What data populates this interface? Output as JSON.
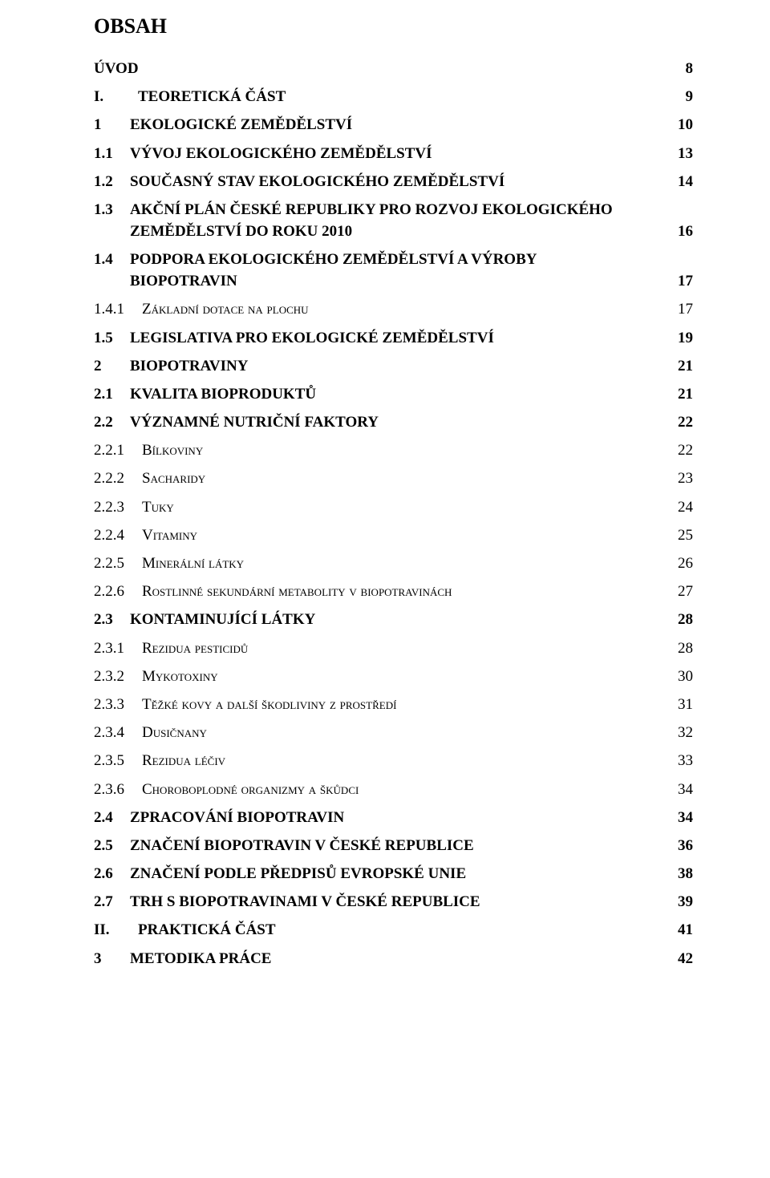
{
  "title": "OBSAH",
  "entries": [
    {
      "level": 0,
      "num": "",
      "label": "ÚVOD",
      "page": "8"
    },
    {
      "level": 0,
      "num": "I.",
      "label": "TEORETICKÁ ČÁST",
      "page": "9",
      "gap": true
    },
    {
      "level": 1,
      "num": "1",
      "label": "EKOLOGICKÉ ZEMĚDĚLSTVÍ",
      "page": "10"
    },
    {
      "level": 1,
      "num": "1.1",
      "label": "VÝVOJ EKOLOGICKÉHO ZEMĚDĚLSTVÍ",
      "page": "13"
    },
    {
      "level": 1,
      "num": "1.2",
      "label": "SOUČASNÝ STAV EKOLOGICKÉHO ZEMĚDĚLSTVÍ",
      "page": "14"
    },
    {
      "level": 1,
      "num": "1.3",
      "label_line1": "AKČNÍ PLÁN ČESKÉ REPUBLIKY PRO ROZVOJ EKOLOGICKÉHO",
      "label_line2": "ZEMĚDĚLSTVÍ DO ROKU 2010",
      "page": "16",
      "twoline": true
    },
    {
      "level": 1,
      "num": "1.4",
      "label_line1": "PODPORA EKOLOGICKÉHO ZEMĚDĚLSTVÍ A VÝROBY",
      "label_line2": "BIOPOTRAVIN",
      "page": "17",
      "twoline": true
    },
    {
      "level": 2,
      "num": "1.4.1",
      "label": "Základní dotace na plochu",
      "page": "17"
    },
    {
      "level": 1,
      "num": "1.5",
      "label": "LEGISLATIVA PRO EKOLOGICKÉ ZEMĚDĚLSTVÍ",
      "page": "19"
    },
    {
      "level": 1,
      "num": "2",
      "label": "BIOPOTRAVINY",
      "page": "21"
    },
    {
      "level": 1,
      "num": "2.1",
      "label": "KVALITA BIOPRODUKTŮ",
      "page": "21"
    },
    {
      "level": 1,
      "num": "2.2",
      "label": "VÝZNAMNÉ NUTRIČNÍ FAKTORY",
      "page": "22"
    },
    {
      "level": 2,
      "num": "2.2.1",
      "label": "Bílkoviny",
      "page": "22"
    },
    {
      "level": 2,
      "num": "2.2.2",
      "label": "Sacharidy",
      "page": "23"
    },
    {
      "level": 2,
      "num": "2.2.3",
      "label": "Tuky",
      "page": "24"
    },
    {
      "level": 2,
      "num": "2.2.4",
      "label": "Vitaminy",
      "page": "25"
    },
    {
      "level": 2,
      "num": "2.2.5",
      "label": "Minerální látky",
      "page": "26"
    },
    {
      "level": 2,
      "num": "2.2.6",
      "label": "Rostlinné sekundární metabolity v biopotravinách",
      "page": "27"
    },
    {
      "level": 1,
      "num": "2.3",
      "label": "KONTAMINUJÍCÍ LÁTKY",
      "page": "28"
    },
    {
      "level": 2,
      "num": "2.3.1",
      "label": "Rezidua pesticidů",
      "page": "28"
    },
    {
      "level": 2,
      "num": "2.3.2",
      "label": "Mykotoxiny",
      "page": "30"
    },
    {
      "level": 2,
      "num": "2.3.3",
      "label": "Těžké kovy a další škodliviny z prostředí",
      "page": "31"
    },
    {
      "level": 2,
      "num": "2.3.4",
      "label": "Dusičnany",
      "page": "32"
    },
    {
      "level": 2,
      "num": "2.3.5",
      "label": "Rezidua léčiv",
      "page": "33"
    },
    {
      "level": 2,
      "num": "2.3.6",
      "label": "Choroboplodné organizmy a škůdci",
      "page": "34"
    },
    {
      "level": 1,
      "num": "2.4",
      "label": "ZPRACOVÁNÍ BIOPOTRAVIN",
      "page": "34"
    },
    {
      "level": 1,
      "num": "2.5",
      "label": "ZNAČENÍ BIOPOTRAVIN V ČESKÉ REPUBLICE",
      "page": "36"
    },
    {
      "level": 1,
      "num": "2.6",
      "label": "ZNAČENÍ PODLE PŘEDPISŮ EVROPSKÉ UNIE",
      "page": "38"
    },
    {
      "level": 1,
      "num": "2.7",
      "label": "TRH S BIOPOTRAVINAMI V ČESKÉ REPUBLICE",
      "page": "39"
    },
    {
      "level": 0,
      "num": "II.",
      "label": "PRAKTICKÁ ČÁST",
      "page": "41",
      "gap": true
    },
    {
      "level": 1,
      "num": "3",
      "label": "METODIKA PRÁCE",
      "page": "42"
    }
  ]
}
